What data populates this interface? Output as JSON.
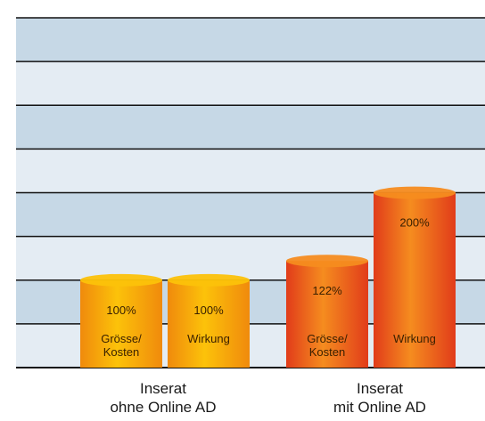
{
  "colors": {
    "plot_band_light": "#e4ecf3",
    "plot_band_dark": "#c6d8e6",
    "grid_line": "#111111",
    "group1_bar_light": "#fcc20a",
    "group1_bar_dark": "#f08a0c",
    "group2_bar_light": "#f58c1f",
    "group2_bar_dark": "#e13c1a"
  },
  "chart_data": {
    "type": "bar",
    "ylim": [
      0,
      200
    ],
    "grid": true,
    "categories": [
      [
        "Inserat",
        "ohne Online AD"
      ],
      [
        "Inserat",
        "mit Online AD"
      ]
    ],
    "bars": [
      {
        "group": 0,
        "label": "Grösse/\nKosten",
        "value": 100,
        "value_label": "100%"
      },
      {
        "group": 0,
        "label": "Wirkung",
        "value": 100,
        "value_label": "100%"
      },
      {
        "group": 1,
        "label": "Grösse/\nKosten",
        "value": 122,
        "value_label": "122%"
      },
      {
        "group": 1,
        "label": "Wirkung",
        "value": 200,
        "value_label": "200%"
      }
    ]
  }
}
